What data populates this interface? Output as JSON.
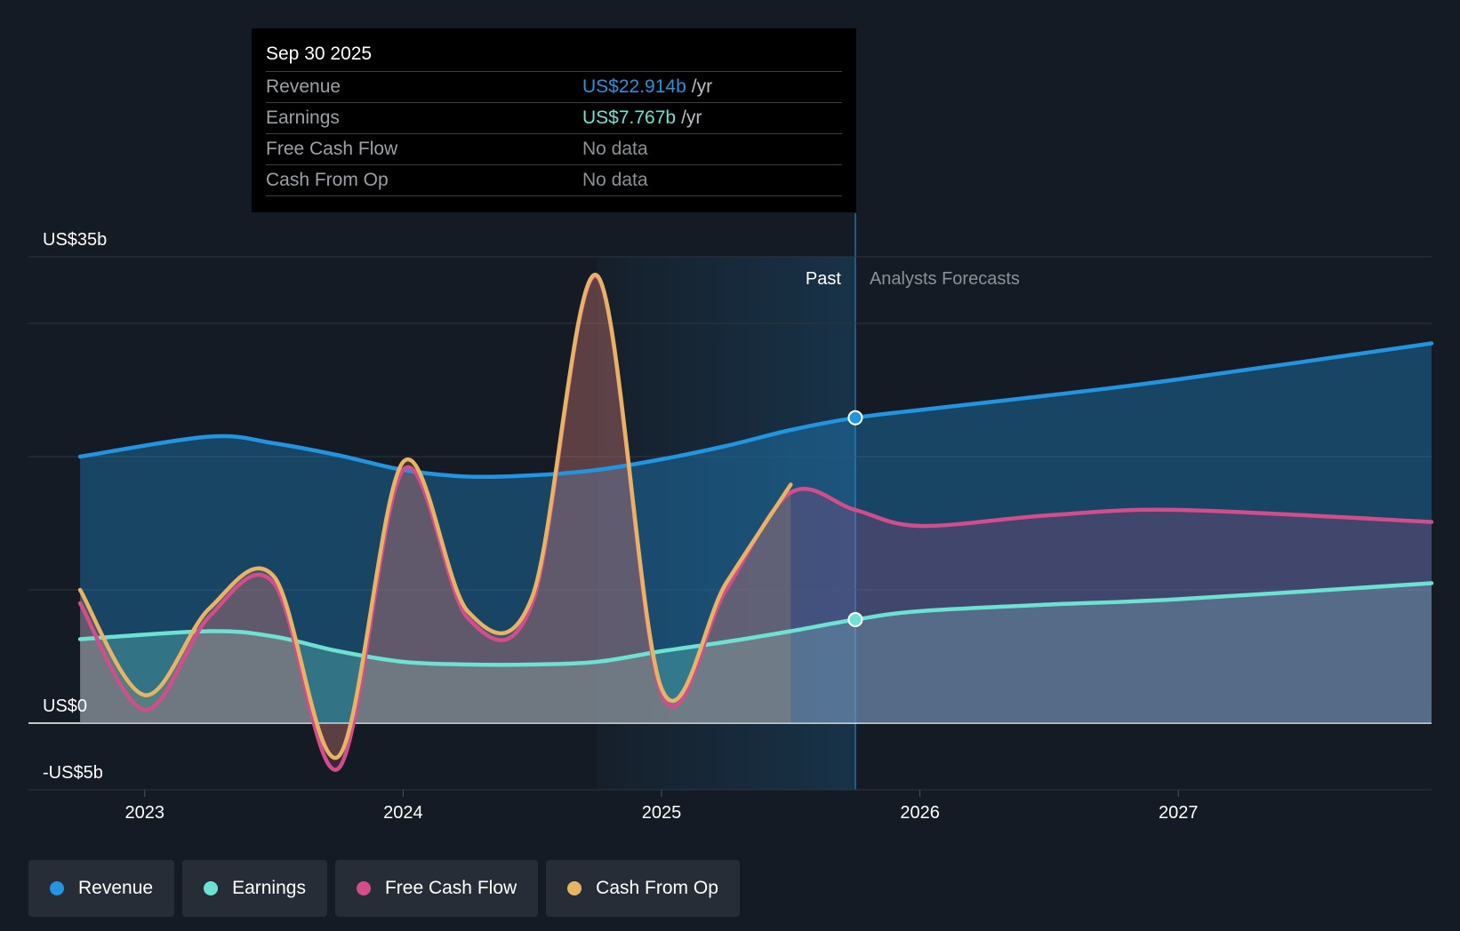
{
  "tooltip": {
    "date": "Sep 30 2025",
    "rows": [
      {
        "label": "Revenue",
        "value": "US$22.914b",
        "unit": "/yr",
        "color": "#2394df"
      },
      {
        "label": "Earnings",
        "value": "US$7.767b",
        "unit": "/yr",
        "color": "#6de2d3"
      },
      {
        "label": "Free Cash Flow",
        "value": "No data",
        "unit": "",
        "color": "#8c9196"
      },
      {
        "label": "Cash From Op",
        "value": "No data",
        "unit": "",
        "color": "#8c9196"
      }
    ]
  },
  "legend": [
    {
      "label": "Revenue",
      "color": "#2394df"
    },
    {
      "label": "Earnings",
      "color": "#6de2d3"
    },
    {
      "label": "Free Cash Flow",
      "color": "#d14d8b"
    },
    {
      "label": "Cash From Op",
      "color": "#e7b466"
    }
  ],
  "chart_data": {
    "type": "line",
    "title": "",
    "y_axis_labels": {
      "top": "US$35b",
      "zero": "US$0",
      "bottom": "-US$5b"
    },
    "ylim": [
      -5,
      35
    ],
    "xlim": [
      2022.55,
      2027.98
    ],
    "x_ticks": [
      2023,
      2024,
      2025,
      2026,
      2027
    ],
    "x_tick_labels": [
      "2023",
      "2024",
      "2025",
      "2026",
      "2027"
    ],
    "gridlines": [
      35,
      30,
      20,
      10,
      0,
      -5
    ],
    "past_label": "Past",
    "forecast_label": "Analysts Forecasts",
    "past_highlight_start": 2024.75,
    "forecast_start": 2025.75,
    "series": [
      {
        "name": "Revenue",
        "color": "#2394df",
        "points": [
          [
            2022.75,
            20.0
          ],
          [
            2023.25,
            21.5
          ],
          [
            2023.5,
            21.0
          ],
          [
            2023.75,
            20.1
          ],
          [
            2024.0,
            19.0
          ],
          [
            2024.25,
            18.5
          ],
          [
            2024.5,
            18.6
          ],
          [
            2024.75,
            19.0
          ],
          [
            2025.0,
            19.8
          ],
          [
            2025.25,
            20.8
          ],
          [
            2025.5,
            22.0
          ],
          [
            2025.75,
            22.914
          ],
          [
            2026.0,
            23.5
          ],
          [
            2026.5,
            24.6
          ],
          [
            2027.0,
            25.8
          ],
          [
            2027.98,
            28.5
          ]
        ],
        "forecast_from": 2025.75,
        "marker_at": 2025.75
      },
      {
        "name": "Earnings",
        "color": "#6de2d3",
        "points": [
          [
            2022.75,
            6.3
          ],
          [
            2023.25,
            6.9
          ],
          [
            2023.5,
            6.5
          ],
          [
            2023.75,
            5.4
          ],
          [
            2024.0,
            4.6
          ],
          [
            2024.25,
            4.4
          ],
          [
            2024.5,
            4.4
          ],
          [
            2024.75,
            4.6
          ],
          [
            2025.0,
            5.4
          ],
          [
            2025.25,
            6.1
          ],
          [
            2025.5,
            6.9
          ],
          [
            2025.75,
            7.767
          ],
          [
            2026.0,
            8.4
          ],
          [
            2026.5,
            8.9
          ],
          [
            2027.0,
            9.3
          ],
          [
            2027.98,
            10.5
          ]
        ],
        "forecast_from": 2025.75,
        "marker_at": 2025.75
      },
      {
        "name": "Free Cash Flow",
        "color": "#d14d8b",
        "points": [
          [
            2022.75,
            9.0
          ],
          [
            2023.0,
            1.0
          ],
          [
            2023.25,
            8.0
          ],
          [
            2023.5,
            10.5
          ],
          [
            2023.75,
            -3.4
          ],
          [
            2024.0,
            19.0
          ],
          [
            2024.25,
            7.9
          ],
          [
            2024.5,
            9.0
          ],
          [
            2024.75,
            33.5
          ],
          [
            2025.0,
            2.2
          ],
          [
            2025.25,
            10.0
          ],
          [
            2025.5,
            17.3
          ],
          [
            2025.75,
            16.0
          ],
          [
            2026.0,
            14.8
          ],
          [
            2026.5,
            15.6
          ],
          [
            2027.0,
            16.0
          ],
          [
            2027.98,
            15.1
          ]
        ],
        "forecast_from": 2025.5
      },
      {
        "name": "Cash From Op",
        "color": "#e7b466",
        "points": [
          [
            2022.75,
            10.0
          ],
          [
            2023.0,
            2.1
          ],
          [
            2023.25,
            8.6
          ],
          [
            2023.5,
            11.0
          ],
          [
            2023.75,
            -2.5
          ],
          [
            2024.0,
            19.6
          ],
          [
            2024.25,
            8.4
          ],
          [
            2024.5,
            9.5
          ],
          [
            2024.75,
            33.6
          ],
          [
            2025.0,
            2.6
          ],
          [
            2025.25,
            10.5
          ],
          [
            2025.5,
            17.9
          ]
        ]
      }
    ]
  }
}
